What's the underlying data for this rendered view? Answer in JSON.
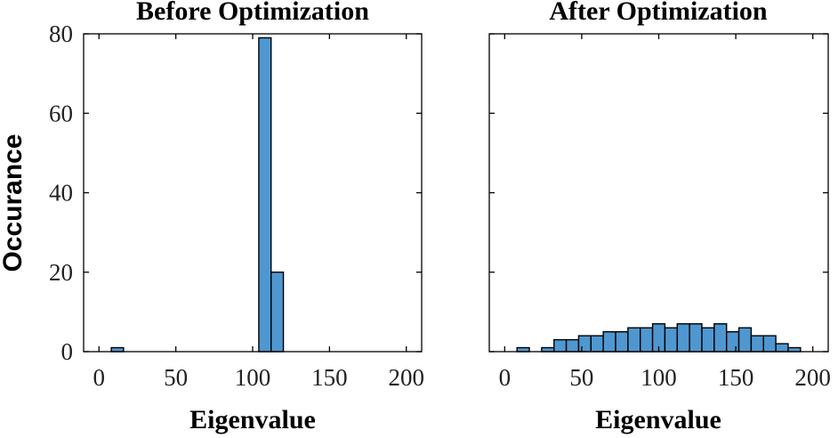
{
  "chart_data": [
    {
      "type": "bar",
      "title": "Before Optimization",
      "xlabel": "Eigenvalue",
      "ylabel": "Occurance",
      "xlim": [
        -10,
        210
      ],
      "ylim": [
        0,
        80
      ],
      "xticks": [
        "0",
        "50",
        "100",
        "150",
        "200"
      ],
      "yticks": [
        "0",
        "20",
        "40",
        "60",
        "80"
      ],
      "bin_width": 8,
      "bins": [
        {
          "start": 8,
          "end": 16,
          "count": 1
        },
        {
          "start": 104,
          "end": 112,
          "count": 79
        },
        {
          "start": 112,
          "end": 120,
          "count": 20
        }
      ],
      "bar_color": "#4F97D0",
      "grid": false,
      "legend": "none"
    },
    {
      "type": "bar",
      "title": "After Optimization",
      "xlabel": "Eigenvalue",
      "ylabel": "",
      "xlim": [
        -10,
        210
      ],
      "ylim": [
        0,
        80
      ],
      "xticks": [
        "0",
        "50",
        "100",
        "150",
        "200"
      ],
      "yticks": [],
      "bin_width": 8,
      "bins": [
        {
          "start": 8,
          "end": 16,
          "count": 1
        },
        {
          "start": 24,
          "end": 32,
          "count": 1
        },
        {
          "start": 32,
          "end": 40,
          "count": 3
        },
        {
          "start": 40,
          "end": 48,
          "count": 3
        },
        {
          "start": 48,
          "end": 56,
          "count": 4
        },
        {
          "start": 56,
          "end": 64,
          "count": 4
        },
        {
          "start": 64,
          "end": 72,
          "count": 5
        },
        {
          "start": 72,
          "end": 80,
          "count": 5
        },
        {
          "start": 80,
          "end": 88,
          "count": 6
        },
        {
          "start": 88,
          "end": 96,
          "count": 6
        },
        {
          "start": 96,
          "end": 104,
          "count": 7
        },
        {
          "start": 104,
          "end": 112,
          "count": 6
        },
        {
          "start": 112,
          "end": 120,
          "count": 7
        },
        {
          "start": 120,
          "end": 128,
          "count": 7
        },
        {
          "start": 128,
          "end": 136,
          "count": 6
        },
        {
          "start": 136,
          "end": 144,
          "count": 7
        },
        {
          "start": 144,
          "end": 152,
          "count": 5
        },
        {
          "start": 152,
          "end": 160,
          "count": 6
        },
        {
          "start": 160,
          "end": 168,
          "count": 4
        },
        {
          "start": 168,
          "end": 176,
          "count": 4
        },
        {
          "start": 176,
          "end": 184,
          "count": 2
        },
        {
          "start": 184,
          "end": 192,
          "count": 1
        }
      ],
      "bar_color": "#4F97D0",
      "grid": false,
      "legend": "none"
    }
  ]
}
